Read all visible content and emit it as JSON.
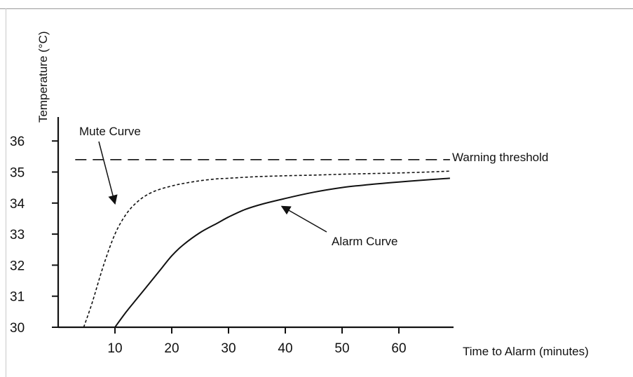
{
  "chart_data": {
    "type": "line",
    "title": "",
    "xlabel": "Time to Alarm (minutes)",
    "ylabel": "Temperature (°C)",
    "xlim": [
      0,
      70
    ],
    "ylim": [
      30,
      36.5
    ],
    "x_ticks": [
      10,
      20,
      30,
      40,
      50,
      60
    ],
    "y_ticks": [
      30,
      31,
      32,
      33,
      34,
      35,
      36
    ],
    "grid": false,
    "legend": "none",
    "series": [
      {
        "name": "Mute Curve",
        "style": "dotted",
        "color": "#111111",
        "x": [
          4.5,
          6,
          8,
          10,
          12,
          14,
          16,
          18,
          20,
          22,
          25,
          28,
          30,
          35,
          40,
          45,
          50,
          55,
          60,
          65,
          69
        ],
        "y": [
          30.0,
          30.8,
          32.0,
          33.0,
          33.65,
          34.05,
          34.3,
          34.45,
          34.55,
          34.63,
          34.72,
          34.78,
          34.8,
          34.85,
          34.88,
          34.9,
          34.93,
          34.95,
          34.97,
          35.0,
          35.03
        ]
      },
      {
        "name": "Alarm Curve",
        "style": "solid",
        "color": "#111111",
        "x": [
          10,
          12,
          14,
          16,
          18,
          20,
          22,
          25,
          28,
          30,
          33,
          36,
          40,
          45,
          50,
          55,
          60,
          65,
          69
        ],
        "y": [
          30.0,
          30.5,
          30.95,
          31.4,
          31.85,
          32.3,
          32.65,
          33.05,
          33.35,
          33.55,
          33.8,
          33.97,
          34.15,
          34.35,
          34.5,
          34.6,
          34.68,
          34.75,
          34.8
        ]
      },
      {
        "name": "Warning threshold",
        "style": "dashed",
        "color": "#111111",
        "x": [
          3,
          69
        ],
        "y": [
          35.4,
          35.4
        ]
      }
    ],
    "annotations": [
      {
        "text": "Mute Curve",
        "points_to": [
          11,
          33.3
        ]
      },
      {
        "text": "Alarm Curve",
        "points_to": [
          39,
          34.1
        ]
      },
      {
        "text": "Warning threshold",
        "points_to": null
      }
    ]
  }
}
